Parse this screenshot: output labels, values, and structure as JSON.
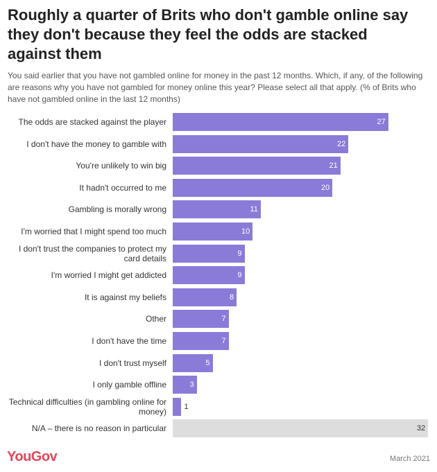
{
  "title": "Roughly a quarter of Brits who don't gamble online say they don't because they feel the odds are stacked against them",
  "subtitle": "You said earlier that you have not gambled online for money in the past 12 months. Which, if any, of the following are reasons why you have not gambled for money online this year? Please select all that apply. (% of Brits who have not gambled online in the last 12 months)",
  "footer": {
    "brand": "YouGov",
    "date": "March 2021"
  },
  "colors": {
    "bar": "#8a7bd9",
    "highlight_bar": "#dddddd",
    "value_inside": "#ffffff",
    "value_outside": "#333333",
    "brand": "#e3475a"
  },
  "chart_data": {
    "type": "bar",
    "orientation": "horizontal",
    "title": "Roughly a quarter of Brits who don't gamble online say they don't because they feel the odds are stacked against them",
    "xlabel": "",
    "ylabel": "",
    "xlim": [
      0,
      32
    ],
    "grid": false,
    "categories": [
      "The odds are stacked against the player",
      "I don't have the money to gamble with",
      "You're unlikely to win big",
      "It hadn't occurred to me",
      "Gambling is morally wrong",
      "I'm worried that I might spend too much",
      "I don't trust the companies to protect my card details",
      "I'm worried I might get addicted",
      "It is against my beliefs",
      "Other",
      "I don't have the time",
      "I don't trust myself",
      "I only gamble offline",
      "Technical difficulties (in gambling online for money)",
      "N/A – there is no reason in particular"
    ],
    "values": [
      27,
      22,
      21,
      20,
      11,
      10,
      9,
      9,
      8,
      7,
      7,
      5,
      3,
      1,
      32
    ],
    "highlight_index": 14
  }
}
